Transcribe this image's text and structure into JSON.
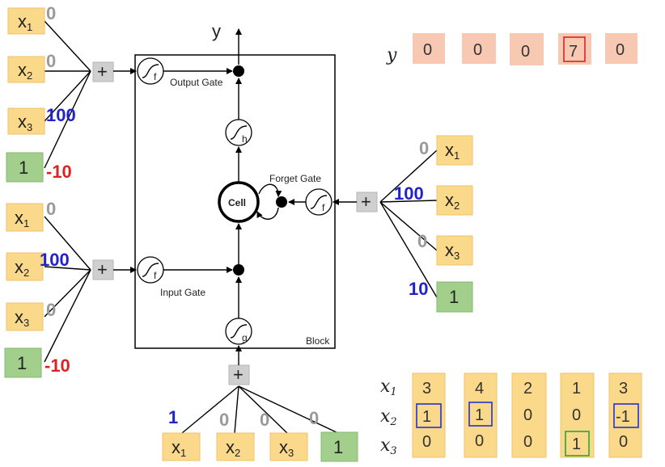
{
  "output_label": "y",
  "output_row_label": "y",
  "outputs": [
    "0",
    "0",
    "0",
    "7",
    "0"
  ],
  "block_label": "Block",
  "cell_label": "Cell",
  "gate_labels": {
    "output": "Output Gate",
    "forget": "Forget Gate",
    "input": "Input Gate"
  },
  "activation_labels": {
    "output": "f",
    "forget": "f",
    "input": "f",
    "cell_out": "h",
    "cell_in": "g"
  },
  "plus": "+",
  "output_gate_inputs": {
    "inputs": [
      "x1",
      "x2",
      "x3",
      "1"
    ],
    "weights": [
      "0",
      "0",
      "100",
      "-10"
    ]
  },
  "input_gate_inputs": {
    "inputs": [
      "x1",
      "x2",
      "x3",
      "1"
    ],
    "weights": [
      "0",
      "100",
      "0",
      "-10"
    ]
  },
  "forget_gate_inputs": {
    "inputs": [
      "x1",
      "x2",
      "x3",
      "1"
    ],
    "weights": [
      "0",
      "100",
      "0",
      "10"
    ]
  },
  "cell_inputs": {
    "inputs": [
      "x1",
      "x2",
      "x3",
      "1"
    ],
    "weights": [
      "1",
      "0",
      "0",
      "0"
    ]
  },
  "sequence": {
    "row_labels": [
      "x1",
      "x2",
      "x3"
    ],
    "columns": [
      [
        "3",
        "1",
        "0"
      ],
      [
        "4",
        "1",
        "0"
      ],
      [
        "2",
        "0",
        "0"
      ],
      [
        "1",
        "0",
        "1"
      ],
      [
        "3",
        "-1",
        "0"
      ]
    ]
  },
  "colors": {
    "highlight_red": "#e02020",
    "highlight_blue": "#2233cc",
    "highlight_green": "#22aa33"
  }
}
